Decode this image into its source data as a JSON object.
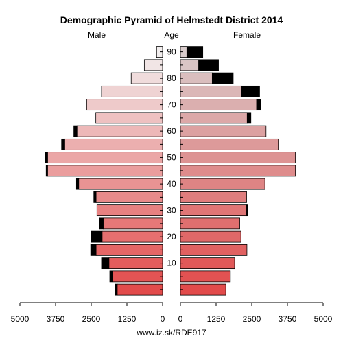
{
  "chart_data": {
    "type": "bar",
    "title": "Demographic Pyramid of Helmstedt District 2014",
    "left_label": "Male",
    "center_label": "Age",
    "right_label": "Female",
    "footer": "www.iz.sk/RDE917",
    "x_ticks_left": [
      "5000",
      "3750",
      "2500",
      "1250",
      "0"
    ],
    "x_ticks_right": [
      "0",
      "1250",
      "2500",
      "3750",
      "5000"
    ],
    "x_tick_values": [
      5000,
      3750,
      2500,
      1250,
      0
    ],
    "age_ticks": [
      {
        "label": "90",
        "group": 90
      },
      {
        "label": "80",
        "group": 80
      },
      {
        "label": "70",
        "group": 70
      },
      {
        "label": "60",
        "group": 60
      },
      {
        "label": "50",
        "group": 50
      },
      {
        "label": "40",
        "group": 40
      },
      {
        "label": "30",
        "group": 30
      },
      {
        "label": "20",
        "group": 20
      },
      {
        "label": "10",
        "group": 10
      }
    ],
    "xlim": [
      0,
      5000
    ],
    "series": [
      {
        "name": "Male"
      },
      {
        "name": "Female"
      }
    ],
    "groups": [
      {
        "age": 90,
        "male": 210,
        "male_extra": 0,
        "female": 225,
        "female_extra": 560
      },
      {
        "age": 85,
        "male": 640,
        "male_extra": 0,
        "female": 640,
        "female_extra": 695
      },
      {
        "age": 80,
        "male": 1100,
        "male_extra": 0,
        "female": 1115,
        "female_extra": 735
      },
      {
        "age": 75,
        "male": 2140,
        "male_extra": 0,
        "female": 2140,
        "female_extra": 635
      },
      {
        "age": 70,
        "male": 2660,
        "male_extra": 0,
        "female": 2670,
        "female_extra": 145
      },
      {
        "age": 65,
        "male": 2340,
        "male_extra": 0,
        "female": 2340,
        "female_extra": 130
      },
      {
        "age": 60,
        "male": 3000,
        "male_extra": 110,
        "female": 3000,
        "female_extra": 0
      },
      {
        "age": 55,
        "male": 3430,
        "male_extra": 110,
        "female": 3430,
        "female_extra": 0
      },
      {
        "age": 50,
        "male": 4030,
        "male_extra": 95,
        "female": 4030,
        "female_extra": 0
      },
      {
        "age": 45,
        "male": 4030,
        "male_extra": 50,
        "female": 4030,
        "female_extra": 0
      },
      {
        "age": 40,
        "male": 2940,
        "male_extra": 80,
        "female": 2960,
        "female_extra": 0
      },
      {
        "age": 35,
        "male": 2330,
        "male_extra": 80,
        "female": 2320,
        "female_extra": 0
      },
      {
        "age": 30,
        "male": 2300,
        "male_extra": 0,
        "female": 2320,
        "female_extra": 50
      },
      {
        "age": 25,
        "male": 2080,
        "male_extra": 140,
        "female": 2080,
        "female_extra": 0
      },
      {
        "age": 20,
        "male": 2120,
        "male_extra": 380,
        "female": 2120,
        "female_extra": 0
      },
      {
        "age": 15,
        "male": 2330,
        "male_extra": 190,
        "female": 2330,
        "female_extra": 0
      },
      {
        "age": 10,
        "male": 1880,
        "male_extra": 260,
        "female": 1900,
        "female_extra": 0
      },
      {
        "age": 5,
        "male": 1750,
        "male_extra": 100,
        "female": 1750,
        "female_extra": 0
      },
      {
        "age": 0,
        "male": 1590,
        "male_extra": 60,
        "female": 1590,
        "female_extra": 0
      }
    ],
    "colors": {
      "male_top": "#f2eeee",
      "male_bottom": "#e24b4b",
      "female_top": "#d9cccc",
      "female_bottom": "#e24b4b",
      "extra": "#000000",
      "outline": "#000000"
    },
    "grid": false
  }
}
